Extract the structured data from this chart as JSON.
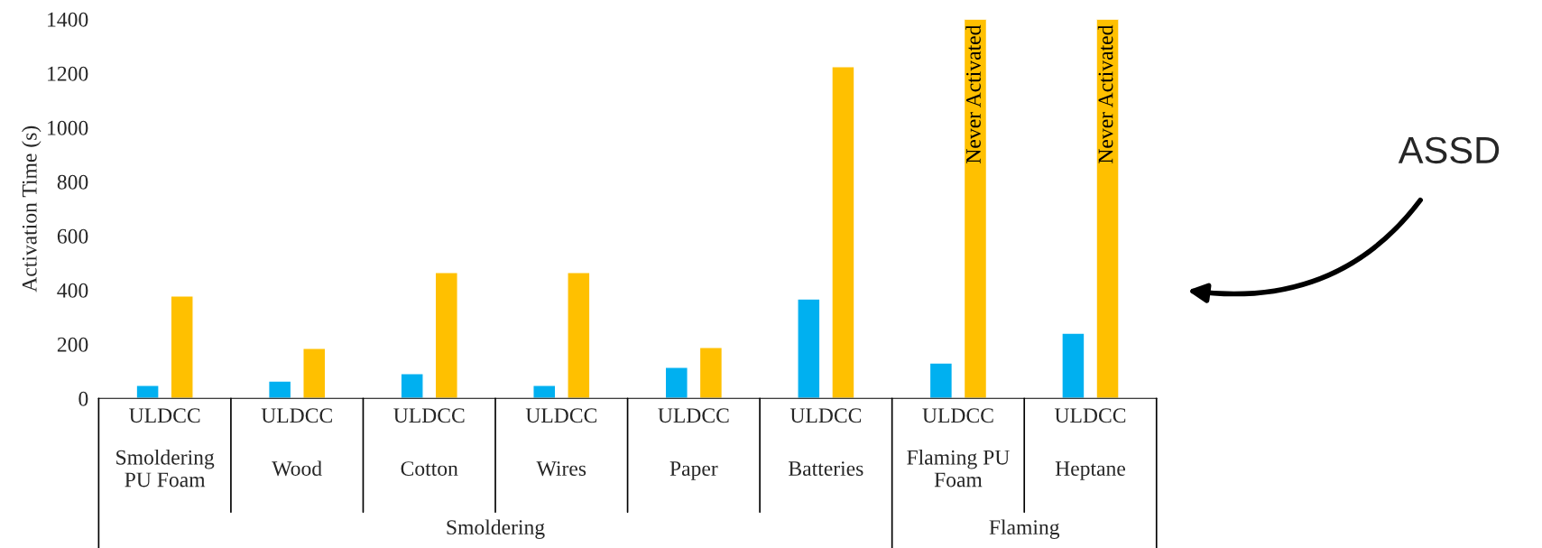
{
  "chart_data": {
    "type": "bar",
    "ylabel": "Activation Time (s)",
    "categories": [
      "ULDCC\nSmoldering\nPU Foam",
      "ULDCC\nWood",
      "ULDCC\nCotton",
      "ULDCC\nWires",
      "ULDCC\nPaper",
      "ULDCC\nBatteries",
      "ULDCC\nFlaming PU\nFoam",
      "ULDCC\nHeptane"
    ],
    "series": [
      {
        "color": "#00b0f0",
        "values": [
          48,
          64,
          92,
          48,
          115,
          367,
          131,
          241
        ]
      },
      {
        "color": "#ffc000",
        "values": [
          378,
          185,
          465,
          465,
          188,
          1225,
          1400,
          1400
        ],
        "value_labels": [
          null,
          null,
          null,
          null,
          null,
          null,
          "Never Activated",
          "Never Activated"
        ]
      }
    ],
    "ylim": [
      0,
      1400
    ],
    "yticks": [
      0,
      200,
      400,
      600,
      800,
      1000,
      1200,
      1400
    ],
    "grid": false,
    "legend": false,
    "annotations": [
      "Smoldering",
      "Flaming",
      "ASSD"
    ]
  }
}
